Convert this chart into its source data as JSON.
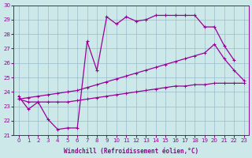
{
  "xlabel": "Windchill (Refroidissement éolien,°C)",
  "bg_color": "#cce8e8",
  "line_color": "#990099",
  "grid_color": "#99bbcc",
  "x_min": 0,
  "x_max": 23,
  "y_min": 21,
  "y_max": 30,
  "line1_x": [
    0,
    1,
    2,
    3,
    4,
    5,
    6,
    7,
    8,
    9,
    10,
    11,
    12,
    13,
    14,
    15,
    16,
    17,
    18,
    19,
    20,
    21,
    22
  ],
  "line1_y": [
    23.7,
    22.8,
    23.3,
    22.1,
    21.4,
    21.5,
    21.5,
    27.5,
    25.5,
    29.2,
    28.7,
    29.2,
    28.9,
    29.0,
    29.3,
    29.3,
    29.3,
    29.3,
    29.3,
    28.5,
    28.5,
    27.2,
    26.2
  ],
  "line2_x": [
    0,
    1,
    2,
    3,
    4,
    5,
    6,
    7,
    8,
    9,
    10,
    11,
    12,
    13,
    14,
    15,
    16,
    17,
    18,
    19,
    20,
    21,
    22,
    23
  ],
  "line2_y": [
    23.5,
    23.6,
    23.7,
    23.8,
    23.9,
    24.0,
    24.1,
    24.3,
    24.5,
    24.7,
    24.9,
    25.1,
    25.3,
    25.5,
    25.7,
    25.9,
    26.1,
    26.3,
    26.5,
    26.7,
    27.3,
    26.3,
    25.5,
    24.8
  ],
  "line3_x": [
    0,
    1,
    2,
    3,
    4,
    5,
    6,
    7,
    8,
    9,
    10,
    11,
    12,
    13,
    14,
    15,
    16,
    17,
    18,
    19,
    20,
    21,
    22,
    23
  ],
  "line3_y": [
    23.5,
    23.3,
    23.3,
    23.3,
    23.3,
    23.3,
    23.4,
    23.5,
    23.6,
    23.7,
    23.8,
    23.9,
    24.0,
    24.1,
    24.2,
    24.3,
    24.4,
    24.4,
    24.5,
    24.5,
    24.6,
    24.6,
    24.6,
    24.6
  ],
  "yticks": [
    21,
    22,
    23,
    24,
    25,
    26,
    27,
    28,
    29,
    30
  ],
  "xticks": [
    0,
    1,
    2,
    3,
    4,
    5,
    6,
    7,
    8,
    9,
    10,
    11,
    12,
    13,
    14,
    15,
    16,
    17,
    18,
    19,
    20,
    21,
    22,
    23
  ]
}
